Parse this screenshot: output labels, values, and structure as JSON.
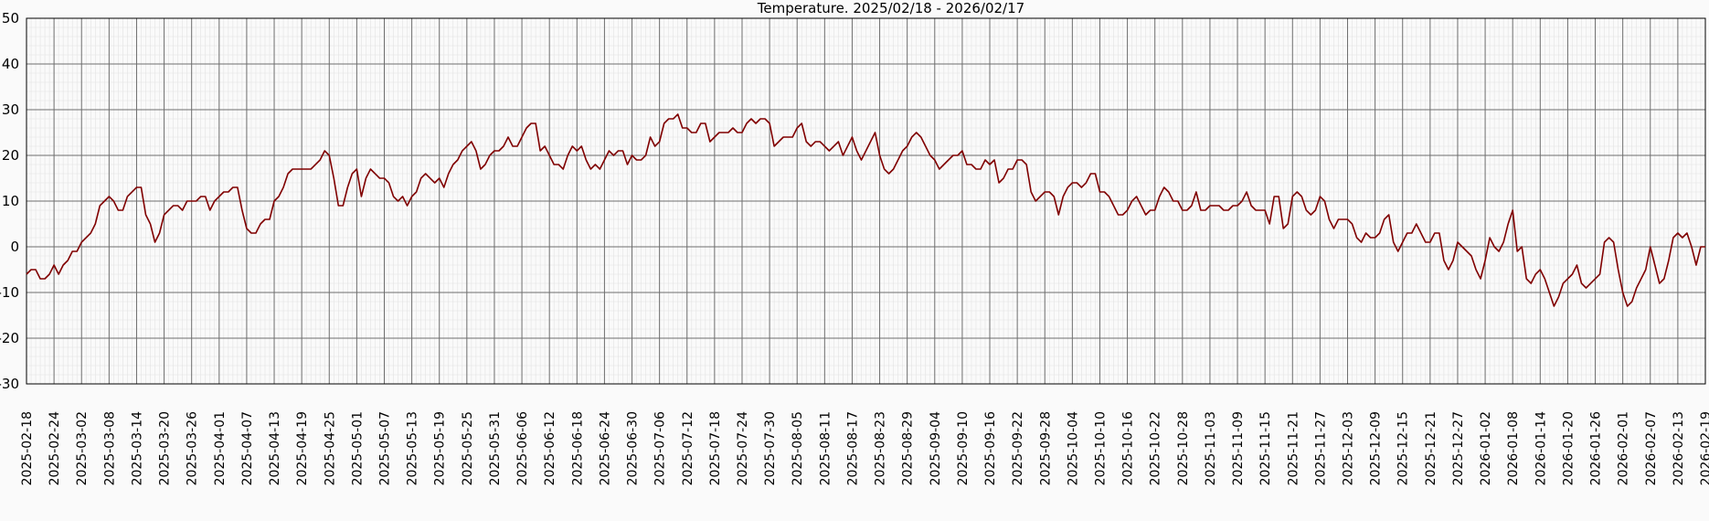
{
  "chart_data": {
    "type": "line",
    "title": "Temperature. 2025/02/18 - 2026/02/17",
    "xlabel": "",
    "ylabel": "",
    "ylim": [
      -30,
      50
    ],
    "yticks": [
      50,
      40,
      30,
      20,
      10,
      0,
      -10,
      -20,
      -30
    ],
    "grid": true,
    "xticks": [
      "2025-02-18",
      "2025-02-24",
      "2025-03-02",
      "2025-03-08",
      "2025-03-14",
      "2025-03-20",
      "2025-03-26",
      "2025-04-01",
      "2025-04-07",
      "2025-04-13",
      "2025-04-19",
      "2025-04-25",
      "2025-05-01",
      "2025-05-07",
      "2025-05-13",
      "2025-05-19",
      "2025-05-25",
      "2025-05-31",
      "2025-06-06",
      "2025-06-12",
      "2025-06-18",
      "2025-06-24",
      "2025-06-30",
      "2025-07-06",
      "2025-07-12",
      "2025-07-18",
      "2025-07-24",
      "2025-07-30",
      "2025-08-05",
      "2025-08-11",
      "2025-08-17",
      "2025-08-23",
      "2025-08-29",
      "2025-09-04",
      "2025-09-10",
      "2025-09-16",
      "2025-09-22",
      "2025-09-28",
      "2025-10-04",
      "2025-10-10",
      "2025-10-16",
      "2025-10-22",
      "2025-10-28",
      "2025-11-03",
      "2025-11-09",
      "2025-11-15",
      "2025-11-21",
      "2025-11-27",
      "2025-12-03",
      "2025-12-09",
      "2025-12-15",
      "2025-12-21",
      "2025-12-27",
      "2026-01-02",
      "2026-01-08",
      "2026-01-14",
      "2026-01-20",
      "2026-01-26",
      "2026-02-01",
      "2026-02-07",
      "2026-02-13",
      "2026-02-19"
    ],
    "series_color": "#800000",
    "series": [
      {
        "x_start": "2025-02-18",
        "x_step_days": 1,
        "values": [
          -6,
          -5,
          -5,
          -7,
          -7,
          -6,
          -4,
          -6,
          -4,
          -3,
          -1,
          -1,
          1,
          2,
          3,
          5,
          9,
          10,
          11,
          10,
          8,
          8,
          11,
          12,
          13,
          13,
          7,
          5,
          1,
          3,
          7,
          8,
          9,
          9,
          8,
          10,
          10,
          10,
          11,
          11,
          8,
          10,
          11,
          12,
          12,
          13,
          13,
          8,
          4,
          3,
          3,
          5,
          6,
          6,
          10,
          11,
          13,
          16,
          17,
          17,
          17,
          17,
          17,
          18,
          19,
          21,
          20,
          15,
          9,
          9,
          13,
          16,
          17,
          11,
          15,
          17,
          16,
          15,
          15,
          14,
          11,
          10,
          11,
          9,
          11,
          12,
          15,
          16,
          15,
          14,
          15,
          13,
          16,
          18,
          19,
          21,
          22,
          23,
          21,
          17,
          18,
          20,
          21,
          21,
          22,
          24,
          22,
          22,
          24,
          26,
          27,
          27,
          21,
          22,
          20,
          18,
          18,
          17,
          20,
          22,
          21,
          22,
          19,
          17,
          18,
          17,
          19,
          21,
          20,
          21,
          21,
          18,
          20,
          19,
          19,
          20,
          24,
          22,
          23,
          27,
          28,
          28,
          29,
          26,
          26,
          25,
          25,
          27,
          27,
          23,
          24,
          25,
          25,
          25,
          26,
          25,
          25,
          27,
          28,
          27,
          28,
          28,
          27,
          22,
          23,
          24,
          24,
          24,
          26,
          27,
          23,
          22,
          23,
          23,
          22,
          21,
          22,
          23,
          20,
          22,
          24,
          21,
          19,
          21,
          23,
          25,
          20,
          17,
          16,
          17,
          19,
          21,
          22,
          24,
          25,
          24,
          22,
          20,
          19,
          17,
          18,
          19,
          20,
          20,
          21,
          18,
          18,
          17,
          17,
          19,
          18,
          19,
          14,
          15,
          17,
          17,
          19,
          19,
          18,
          12,
          10,
          11,
          12,
          12,
          11,
          7,
          11,
          13,
          14,
          14,
          13,
          14,
          16,
          16,
          12,
          12,
          11,
          9,
          7,
          7,
          8,
          10,
          11,
          9,
          7,
          8,
          8,
          11,
          13,
          12,
          10,
          10,
          8,
          8,
          9,
          12,
          8,
          8,
          9,
          9,
          9,
          8,
          8,
          9,
          9,
          10,
          12,
          9,
          8,
          8,
          8,
          5,
          11,
          11,
          4,
          5,
          11,
          12,
          11,
          8,
          7,
          8,
          11,
          10,
          6,
          4,
          6,
          6,
          6,
          5,
          2,
          1,
          3,
          2,
          2,
          3,
          6,
          7,
          1,
          -1,
          1,
          3,
          3,
          5,
          3,
          1,
          1,
          3,
          3,
          -3,
          -5,
          -3,
          1,
          0,
          -1,
          -2,
          -5,
          -7,
          -3,
          2,
          0,
          -1,
          1,
          5,
          8,
          -1,
          0,
          -7,
          -8,
          -6,
          -5,
          -7,
          -10,
          -13,
          -11,
          -8,
          -7,
          -6,
          -4,
          -8,
          -9,
          -8,
          -7,
          -6,
          1,
          2,
          1,
          -5,
          -10,
          -13,
          -12,
          -9,
          -7,
          -5,
          0,
          -4,
          -8,
          -7,
          -3,
          2,
          3,
          2,
          3,
          0,
          -4,
          0,
          0
        ]
      }
    ]
  }
}
